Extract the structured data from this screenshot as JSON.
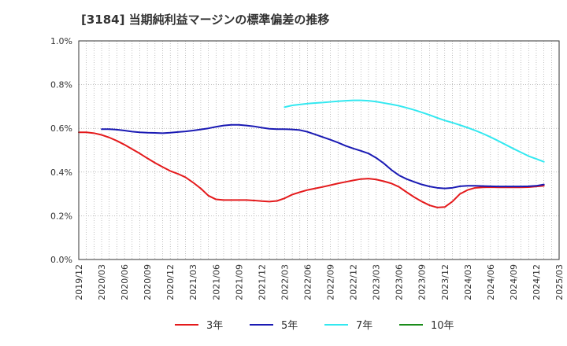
{
  "chart_data": {
    "type": "line",
    "title": "[3184]  当期純利益マージンの標準偏差の推移",
    "xlabel": "",
    "ylabel": "",
    "ylim": [
      0,
      1.0
    ],
    "y_ticks": [
      0,
      0.2,
      0.4,
      0.6,
      0.8,
      1.0
    ],
    "y_tick_labels": [
      "0.0%",
      "0.2%",
      "0.4%",
      "0.6%",
      "0.8%",
      "1.0%"
    ],
    "x_start": "2019/12",
    "x_end": "2025/03",
    "x_tick_labels": [
      "2019/12",
      "2020/03",
      "2020/06",
      "2020/09",
      "2020/12",
      "2021/03",
      "2021/06",
      "2021/09",
      "2021/12",
      "2022/03",
      "2022/06",
      "2022/09",
      "2022/12",
      "2023/03",
      "2023/06",
      "2023/09",
      "2023/12",
      "2024/03",
      "2024/06",
      "2024/09",
      "2024/12",
      "2025/03"
    ],
    "grid": true,
    "legend_position": "bottom",
    "series": [
      {
        "name": "3年",
        "color": "#e41a1c",
        "points": [
          [
            "2019/12",
            0.582
          ],
          [
            "2020/01",
            0.582
          ],
          [
            "2020/02",
            0.578
          ],
          [
            "2020/03",
            0.57
          ],
          [
            "2020/04",
            0.558
          ],
          [
            "2020/05",
            0.543
          ],
          [
            "2020/06",
            0.525
          ],
          [
            "2020/07",
            0.505
          ],
          [
            "2020/08",
            0.485
          ],
          [
            "2020/09",
            0.463
          ],
          [
            "2020/10",
            0.442
          ],
          [
            "2020/11",
            0.423
          ],
          [
            "2020/12",
            0.405
          ],
          [
            "2021/01",
            0.392
          ],
          [
            "2021/02",
            0.376
          ],
          [
            "2021/03",
            0.352
          ],
          [
            "2021/04",
            0.325
          ],
          [
            "2021/05",
            0.292
          ],
          [
            "2021/06",
            0.275
          ],
          [
            "2021/07",
            0.272
          ],
          [
            "2021/08",
            0.272
          ],
          [
            "2021/09",
            0.272
          ],
          [
            "2021/10",
            0.272
          ],
          [
            "2021/11",
            0.27
          ],
          [
            "2021/12",
            0.267
          ],
          [
            "2022/01",
            0.265
          ],
          [
            "2022/02",
            0.268
          ],
          [
            "2022/03",
            0.28
          ],
          [
            "2022/04",
            0.297
          ],
          [
            "2022/05",
            0.308
          ],
          [
            "2022/06",
            0.318
          ],
          [
            "2022/07",
            0.325
          ],
          [
            "2022/08",
            0.332
          ],
          [
            "2022/09",
            0.34
          ],
          [
            "2022/10",
            0.348
          ],
          [
            "2022/11",
            0.355
          ],
          [
            "2022/12",
            0.362
          ],
          [
            "2023/01",
            0.368
          ],
          [
            "2023/02",
            0.37
          ],
          [
            "2023/03",
            0.366
          ],
          [
            "2023/04",
            0.358
          ],
          [
            "2023/05",
            0.348
          ],
          [
            "2023/06",
            0.332
          ],
          [
            "2023/07",
            0.308
          ],
          [
            "2023/08",
            0.285
          ],
          [
            "2023/09",
            0.265
          ],
          [
            "2023/10",
            0.248
          ],
          [
            "2023/11",
            0.238
          ],
          [
            "2023/12",
            0.24
          ],
          [
            "2024/01",
            0.265
          ],
          [
            "2024/02",
            0.3
          ],
          [
            "2024/03",
            0.318
          ],
          [
            "2024/04",
            0.328
          ],
          [
            "2024/05",
            0.33
          ],
          [
            "2024/06",
            0.331
          ],
          [
            "2024/07",
            0.33
          ],
          [
            "2024/08",
            0.33
          ],
          [
            "2024/09",
            0.33
          ],
          [
            "2024/10",
            0.33
          ],
          [
            "2024/11",
            0.331
          ],
          [
            "2024/12",
            0.334
          ],
          [
            "2025/01",
            0.337
          ]
        ]
      },
      {
        "name": "5年",
        "color": "#1a1ab4",
        "points": [
          [
            "2020/03",
            0.596
          ],
          [
            "2020/04",
            0.596
          ],
          [
            "2020/05",
            0.594
          ],
          [
            "2020/06",
            0.59
          ],
          [
            "2020/07",
            0.585
          ],
          [
            "2020/08",
            0.582
          ],
          [
            "2020/09",
            0.58
          ],
          [
            "2020/10",
            0.579
          ],
          [
            "2020/11",
            0.578
          ],
          [
            "2020/12",
            0.58
          ],
          [
            "2021/01",
            0.583
          ],
          [
            "2021/02",
            0.586
          ],
          [
            "2021/03",
            0.59
          ],
          [
            "2021/04",
            0.595
          ],
          [
            "2021/05",
            0.6
          ],
          [
            "2021/06",
            0.607
          ],
          [
            "2021/07",
            0.613
          ],
          [
            "2021/08",
            0.616
          ],
          [
            "2021/09",
            0.616
          ],
          [
            "2021/10",
            0.613
          ],
          [
            "2021/11",
            0.609
          ],
          [
            "2021/12",
            0.603
          ],
          [
            "2022/01",
            0.598
          ],
          [
            "2022/02",
            0.596
          ],
          [
            "2022/03",
            0.596
          ],
          [
            "2022/04",
            0.595
          ],
          [
            "2022/05",
            0.592
          ],
          [
            "2022/06",
            0.584
          ],
          [
            "2022/07",
            0.572
          ],
          [
            "2022/08",
            0.56
          ],
          [
            "2022/09",
            0.548
          ],
          [
            "2022/10",
            0.535
          ],
          [
            "2022/11",
            0.52
          ],
          [
            "2022/12",
            0.508
          ],
          [
            "2023/01",
            0.497
          ],
          [
            "2023/02",
            0.485
          ],
          [
            "2023/03",
            0.465
          ],
          [
            "2023/04",
            0.44
          ],
          [
            "2023/05",
            0.41
          ],
          [
            "2023/06",
            0.385
          ],
          [
            "2023/07",
            0.368
          ],
          [
            "2023/08",
            0.355
          ],
          [
            "2023/09",
            0.343
          ],
          [
            "2023/10",
            0.334
          ],
          [
            "2023/11",
            0.328
          ],
          [
            "2023/12",
            0.325
          ],
          [
            "2024/01",
            0.328
          ],
          [
            "2024/02",
            0.335
          ],
          [
            "2024/03",
            0.337
          ],
          [
            "2024/04",
            0.337
          ],
          [
            "2024/05",
            0.336
          ],
          [
            "2024/06",
            0.335
          ],
          [
            "2024/07",
            0.334
          ],
          [
            "2024/08",
            0.334
          ],
          [
            "2024/09",
            0.334
          ],
          [
            "2024/10",
            0.334
          ],
          [
            "2024/11",
            0.335
          ],
          [
            "2024/12",
            0.337
          ],
          [
            "2025/01",
            0.343
          ]
        ]
      },
      {
        "name": "7年",
        "color": "#33e8f0",
        "points": [
          [
            "2022/03",
            0.697
          ],
          [
            "2022/04",
            0.705
          ],
          [
            "2022/05",
            0.709
          ],
          [
            "2022/06",
            0.713
          ],
          [
            "2022/07",
            0.716
          ],
          [
            "2022/08",
            0.718
          ],
          [
            "2022/09",
            0.721
          ],
          [
            "2022/10",
            0.724
          ],
          [
            "2022/11",
            0.726
          ],
          [
            "2022/12",
            0.728
          ],
          [
            "2023/01",
            0.728
          ],
          [
            "2023/02",
            0.726
          ],
          [
            "2023/03",
            0.722
          ],
          [
            "2023/04",
            0.716
          ],
          [
            "2023/05",
            0.71
          ],
          [
            "2023/06",
            0.703
          ],
          [
            "2023/07",
            0.694
          ],
          [
            "2023/08",
            0.684
          ],
          [
            "2023/09",
            0.673
          ],
          [
            "2023/10",
            0.661
          ],
          [
            "2023/11",
            0.648
          ],
          [
            "2023/12",
            0.636
          ],
          [
            "2024/01",
            0.626
          ],
          [
            "2024/02",
            0.615
          ],
          [
            "2024/03",
            0.603
          ],
          [
            "2024/04",
            0.59
          ],
          [
            "2024/05",
            0.576
          ],
          [
            "2024/06",
            0.56
          ],
          [
            "2024/07",
            0.543
          ],
          [
            "2024/08",
            0.525
          ],
          [
            "2024/09",
            0.507
          ],
          [
            "2024/10",
            0.49
          ],
          [
            "2024/11",
            0.473
          ],
          [
            "2024/12",
            0.46
          ],
          [
            "2025/01",
            0.447
          ]
        ]
      },
      {
        "name": "10年",
        "color": "#1a8c1a",
        "points": []
      }
    ]
  }
}
